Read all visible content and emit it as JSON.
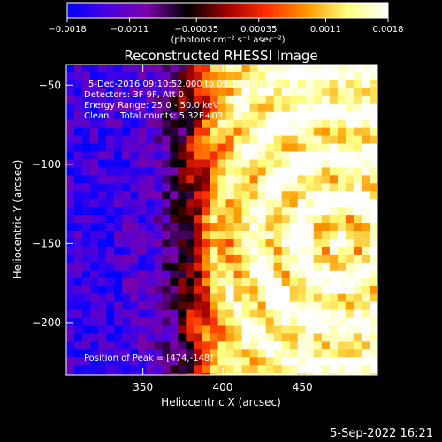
{
  "chart_data": {
    "type": "heatmap",
    "title": "Reconstructed RHESSI Image",
    "xlabel": "Heliocentric X (arcsec)",
    "ylabel": "Heliocentric Y (arcsec)",
    "xlim": [
      302,
      497
    ],
    "ylim": [
      -233,
      -37
    ],
    "x_ticks": [
      350,
      400,
      450
    ],
    "y_ticks": [
      -50,
      -100,
      -150,
      -200
    ],
    "x_tick_labels": [
      "350",
      "400",
      "450"
    ],
    "y_tick_labels": [
      "−50",
      "−100",
      "−150",
      "−200"
    ],
    "colorbar": {
      "range": [
        -0.0018,
        0.0018
      ],
      "ticks": [
        -0.0018,
        -0.0011,
        -0.00035,
        0.00035,
        0.0011,
        0.0018
      ],
      "tick_labels": [
        "−0.0018",
        "−0.0011",
        "−0.00035",
        "0.00035",
        "0.0011",
        "0.0018"
      ],
      "unit_label": "(photons cm⁻² s⁻¹ asec⁻²)",
      "colors": [
        "#0000ff",
        "#4a00e0",
        "#7a00a8",
        "#000000",
        "#a00000",
        "#ff3000",
        "#ff9a00",
        "#ffff80",
        "#ffffff"
      ]
    },
    "annotations": {
      "time_range": "5-Dec-2016 09:10:52.000 to 09:16:52.000",
      "detectors": "Detectors: 3F 9F, Att 0",
      "energy_range": "Energy Range: 25.0 - 50.0 keV",
      "clean_counts": "Clean    Total counts: 5.32E+03",
      "peak": "Position of Peak = [474,-148]"
    },
    "peak": [
      474,
      -148
    ]
  },
  "footer": {
    "timestamp": "5-Sep-2022 16:21"
  }
}
